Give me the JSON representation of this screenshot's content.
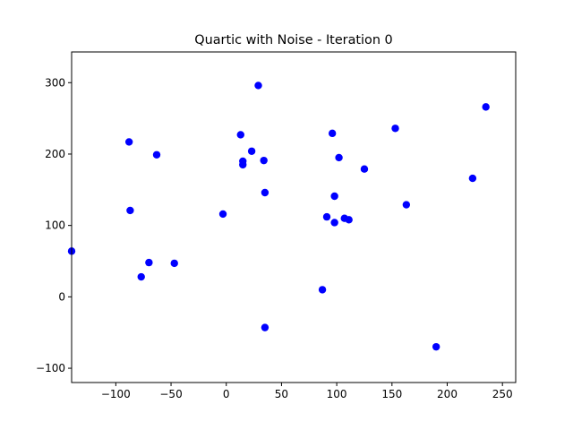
{
  "chart_data": {
    "type": "scatter",
    "title": "Quartic with Noise - Iteration 0",
    "xlabel": "",
    "ylabel": "",
    "xlim": [
      -140,
      262
    ],
    "ylim": [
      -120,
      343
    ],
    "xticks": [
      -100,
      -50,
      0,
      50,
      100,
      150,
      200,
      250
    ],
    "yticks": [
      -100,
      0,
      100,
      200,
      300
    ],
    "xtick_labels": [
      "−100",
      "−50",
      "0",
      "50",
      "100",
      "150",
      "200",
      "250"
    ],
    "ytick_labels": [
      "−100",
      "0",
      "100",
      "200",
      "300"
    ],
    "grid": false,
    "legend": false,
    "marker_color": "#0000ff",
    "series": [
      {
        "x": [
          -140,
          -88,
          -87,
          -63,
          -77,
          -70,
          -47,
          -3,
          13,
          15,
          15,
          23,
          29,
          34,
          35,
          35,
          87,
          91,
          96,
          98,
          98,
          102,
          107,
          111,
          125,
          153,
          163,
          190,
          223,
          235
        ],
        "y": [
          64,
          217,
          121,
          199,
          28,
          48,
          47,
          116,
          227,
          190,
          185,
          204,
          296,
          191,
          146,
          -43,
          10,
          112,
          229,
          141,
          104,
          195,
          110,
          108,
          179,
          236,
          129,
          -70,
          166,
          266
        ]
      }
    ]
  }
}
